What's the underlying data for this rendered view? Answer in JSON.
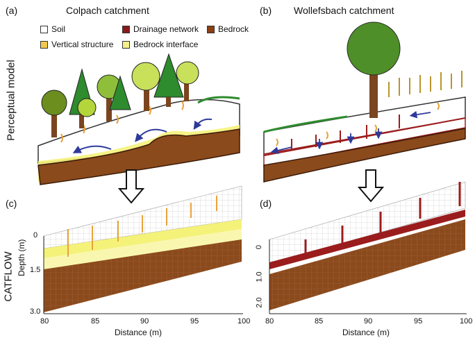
{
  "panels": {
    "a": {
      "label": "(a)",
      "title": "Colpach catchment"
    },
    "b": {
      "label": "(b)",
      "title": "Wollefsbach catchment"
    },
    "c": {
      "label": "(c)"
    },
    "d": {
      "label": "(d)"
    }
  },
  "row_labels": {
    "top": "Perceptual model",
    "bottom": "CATFLOW"
  },
  "legend": [
    {
      "label": "Soil",
      "color": "#ffffff"
    },
    {
      "label": "Drainage network",
      "color": "#8b1a1a"
    },
    {
      "label": "Bedrock",
      "color": "#8b3f12"
    },
    {
      "label": "Vertical structure",
      "color": "#f2c94c"
    },
    {
      "label": "Bedrock interface",
      "color": "#f5f089"
    }
  ],
  "colors": {
    "soil": "#ffffff",
    "bedrock": "#8b4a1c",
    "bedrock_grid": "#b0785a",
    "interface": "#f5f27a",
    "drainage": "#9b1c1c",
    "vertical": "#e8a33a",
    "arrow": "#2d3a9a"
  },
  "plot_c": {
    "xlabel": "Distance (m)",
    "ylabel": "Depth (m)",
    "xticks": [
      "80",
      "85",
      "90",
      "95",
      "100"
    ],
    "yticks": [
      "0",
      "1.5",
      "3.0"
    ]
  },
  "plot_d": {
    "xlabel": "Distance (m)",
    "yticks": [
      "0",
      "1.0",
      "2.0"
    ],
    "xticks": [
      "80",
      "85",
      "90",
      "95",
      "100"
    ]
  }
}
